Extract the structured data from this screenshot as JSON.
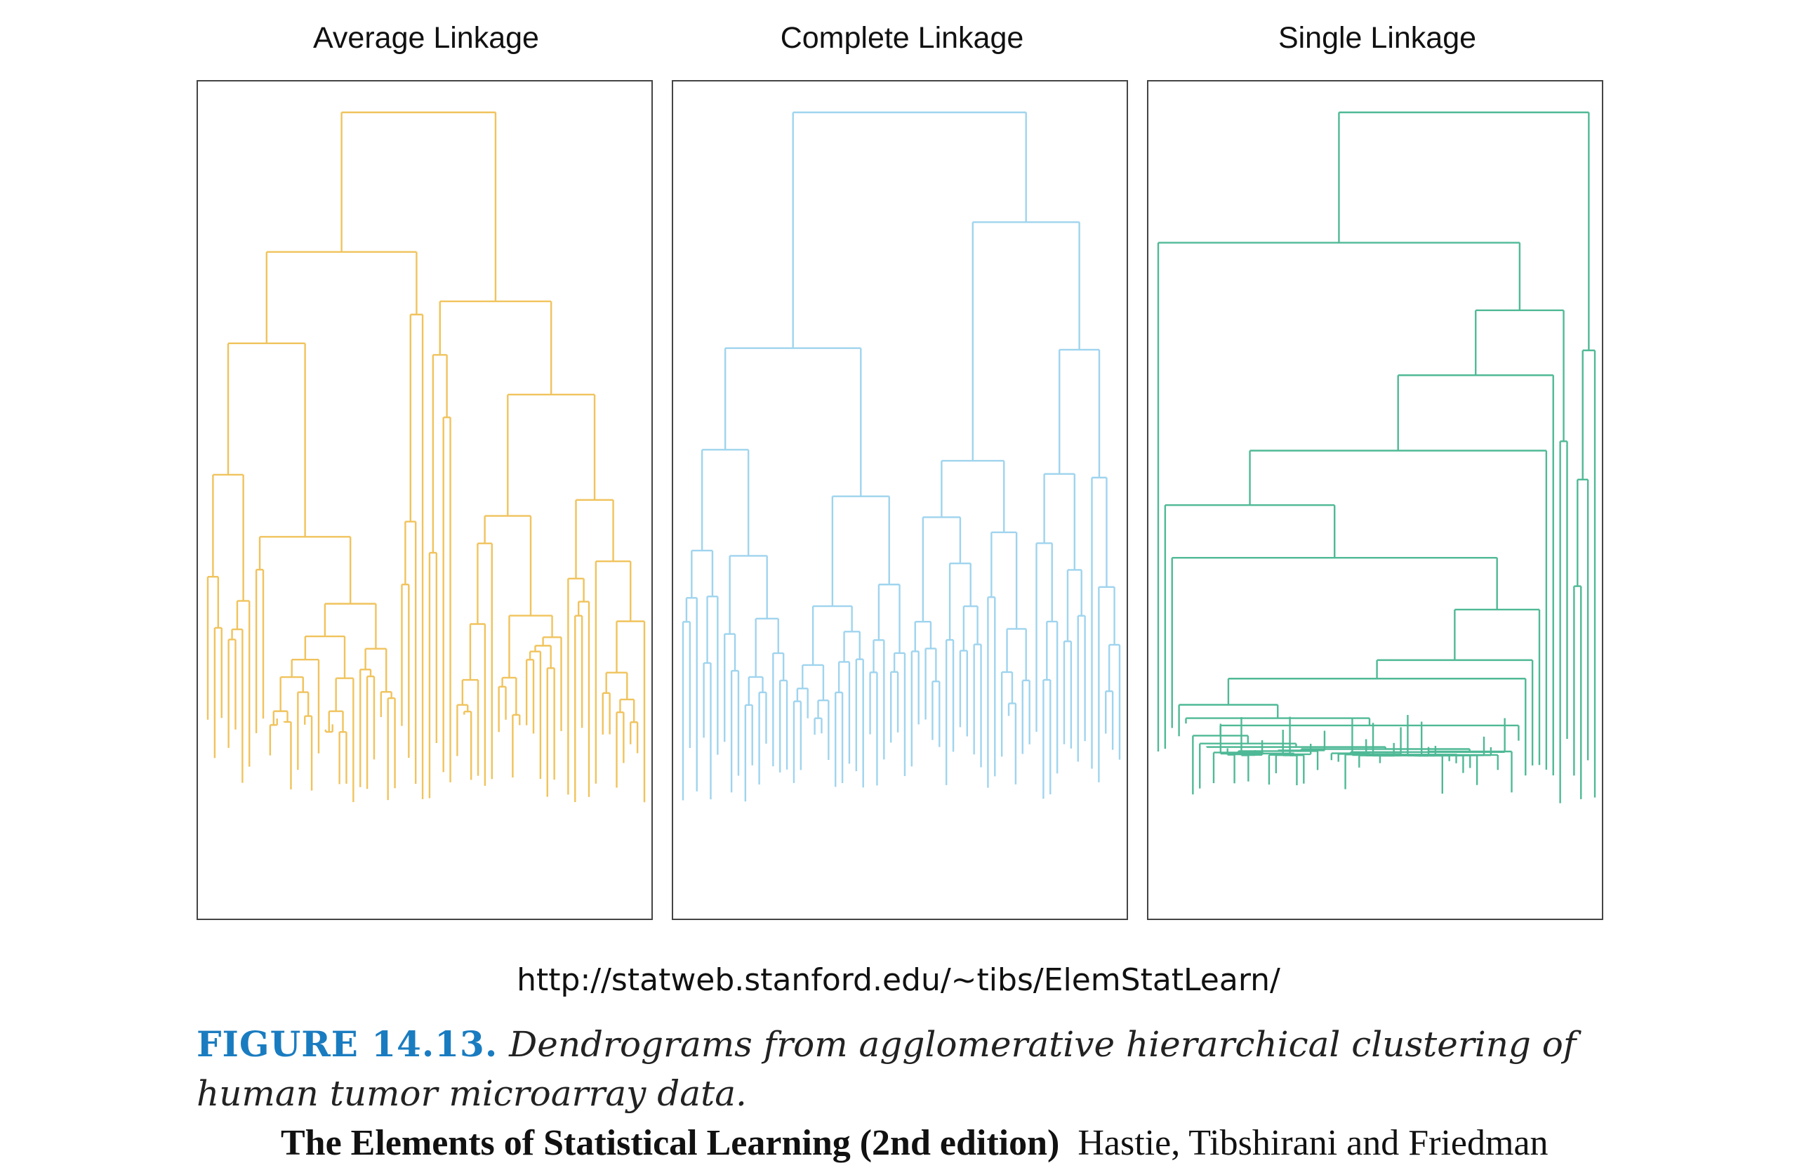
{
  "panels": [
    {
      "title": "Average Linkage",
      "color": "#f0c35c"
    },
    {
      "title": "Complete Linkage",
      "color": "#9fd4ee"
    },
    {
      "title": "Single Linkage",
      "color": "#4fb996"
    }
  ],
  "source_url": "http://statweb.stanford.edu/~tibs/ElemStatLearn/",
  "caption": {
    "label": "FIGURE 14.13.",
    "text": "Dendrograms from agglomerative hierarchical clustering of human tumor microarray data."
  },
  "credit": {
    "book": "The Elements of Statistical Learning (2nd edition)",
    "authors": "Hastie, Tibshirani and Friedman"
  }
}
